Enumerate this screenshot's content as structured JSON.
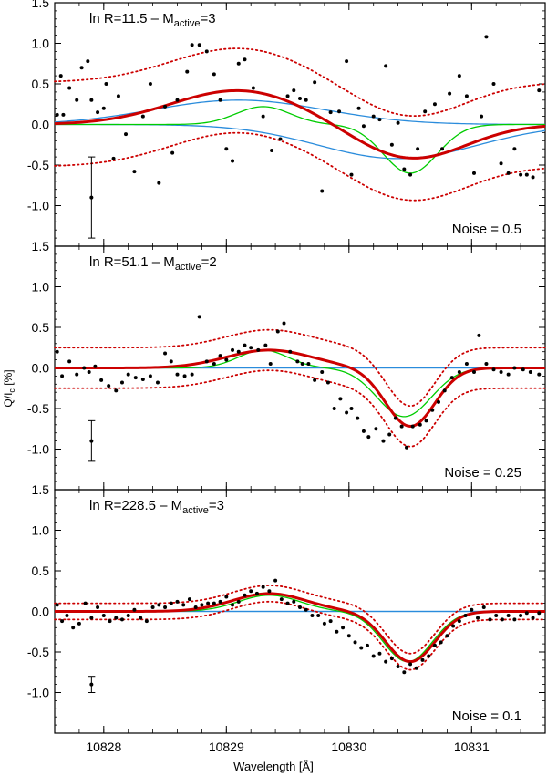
{
  "chart_data": {
    "type": "scatter",
    "xlabel": "Wavelength [Å]",
    "ylabel_main": "Q/I",
    "ylabel_sub": "c",
    "ylabel_unit": " [%]",
    "xlim": [
      10827.6,
      10831.6
    ],
    "xticks": [
      10828,
      10829,
      10830,
      10831
    ],
    "xtick_labels": [
      "10828",
      "10829",
      "10830",
      "10831"
    ],
    "ylim": [
      -1.5,
      1.5
    ],
    "yticks": [
      1.5,
      1.0,
      0.5,
      0.0,
      -0.5,
      -1.0
    ],
    "ytick_labels": [
      "1.5",
      "1.0",
      "0.5",
      "0.0",
      "-0.5",
      "-1.0"
    ],
    "colors": {
      "fit": "#cc0000",
      "green": "#00cc00",
      "blue": "#2a8cdc",
      "points": "#000000"
    },
    "panels": [
      {
        "label_pre": "ln R=11.5 – M",
        "label_sub": "active",
        "label_post": "=3",
        "noise_label": "Noise = 0.5",
        "error_bar": {
          "x": 10827.9,
          "y": -0.9,
          "err": 0.5
        },
        "scatter": [
          [
            10827.62,
            0.12
          ],
          [
            10827.65,
            0.6
          ],
          [
            10827.67,
            0.12
          ],
          [
            10827.72,
            0.45
          ],
          [
            10827.78,
            0.3
          ],
          [
            10827.82,
            0.7
          ],
          [
            10827.87,
            0.78
          ],
          [
            10827.9,
            0.3
          ],
          [
            10827.95,
            0.15
          ],
          [
            10828.0,
            0.2
          ],
          [
            10828.02,
            0.5
          ],
          [
            10828.08,
            -0.42
          ],
          [
            10828.12,
            0.35
          ],
          [
            10828.18,
            -0.12
          ],
          [
            10828.25,
            -0.58
          ],
          [
            10828.32,
            0.1
          ],
          [
            10828.38,
            0.5
          ],
          [
            10828.45,
            -0.72
          ],
          [
            10828.5,
            0.22
          ],
          [
            10828.56,
            -0.35
          ],
          [
            10828.6,
            0.3
          ],
          [
            10828.68,
            0.65
          ],
          [
            10828.72,
            0.98
          ],
          [
            10828.78,
            0.98
          ],
          [
            10828.84,
            0.9
          ],
          [
            10828.9,
            0.62
          ],
          [
            10828.95,
            0.3
          ],
          [
            10829.0,
            -0.3
          ],
          [
            10829.05,
            -0.45
          ],
          [
            10829.1,
            0.75
          ],
          [
            10829.15,
            0.8
          ],
          [
            10829.22,
            0.45
          ],
          [
            10829.3,
            0.1
          ],
          [
            10829.37,
            -0.32
          ],
          [
            10829.44,
            -0.18
          ],
          [
            10829.5,
            0.35
          ],
          [
            10829.55,
            0.42
          ],
          [
            10829.6,
            0.32
          ],
          [
            10829.65,
            0.3
          ],
          [
            10829.72,
            0.52
          ],
          [
            10829.78,
            -0.82
          ],
          [
            10829.85,
            0.15
          ],
          [
            10829.92,
            0.16
          ],
          [
            10829.98,
            0.78
          ],
          [
            10830.02,
            -0.62
          ],
          [
            10830.08,
            0.2
          ],
          [
            10830.12,
            -0.02
          ],
          [
            10830.2,
            0.1
          ],
          [
            10830.25,
            0.06
          ],
          [
            10830.3,
            0.72
          ],
          [
            10830.35,
            -0.25
          ],
          [
            10830.4,
            0.02
          ],
          [
            10830.45,
            -0.55
          ],
          [
            10830.5,
            -0.62
          ],
          [
            10830.56,
            -0.3
          ],
          [
            10830.62,
            0.16
          ],
          [
            10830.7,
            0.25
          ],
          [
            10830.76,
            -0.3
          ],
          [
            10830.82,
            0.38
          ],
          [
            10830.9,
            0.6
          ],
          [
            10830.96,
            0.35
          ],
          [
            10831.02,
            -0.6
          ],
          [
            10831.08,
            0.1
          ],
          [
            10831.12,
            1.08
          ],
          [
            10831.18,
            0.5
          ],
          [
            10831.24,
            -0.48
          ],
          [
            10831.3,
            -0.6
          ],
          [
            10831.35,
            -0.3
          ],
          [
            10831.4,
            -0.62
          ],
          [
            10831.45,
            -0.62
          ],
          [
            10831.5,
            -0.65
          ],
          [
            10831.55,
            0.42
          ]
        ]
      },
      {
        "label_pre": "ln R=51.1 – M",
        "label_sub": "active",
        "label_post": "=2",
        "noise_label": "Noise = 0.25",
        "error_bar": {
          "x": 10827.9,
          "y": -0.9,
          "err": 0.25
        },
        "scatter": [
          [
            10827.62,
            0.2
          ],
          [
            10827.66,
            -0.1
          ],
          [
            10827.72,
            0.08
          ],
          [
            10827.78,
            -0.08
          ],
          [
            10827.84,
            0.0
          ],
          [
            10827.88,
            -0.05
          ],
          [
            10827.93,
            0.02
          ],
          [
            10827.98,
            -0.15
          ],
          [
            10828.04,
            -0.22
          ],
          [
            10828.1,
            -0.28
          ],
          [
            10828.15,
            -0.18
          ],
          [
            10828.2,
            -0.08
          ],
          [
            10828.26,
            -0.12
          ],
          [
            10828.32,
            -0.14
          ],
          [
            10828.38,
            -0.1
          ],
          [
            10828.44,
            -0.18
          ],
          [
            10828.5,
            0.18
          ],
          [
            10828.55,
            0.08
          ],
          [
            10828.6,
            -0.08
          ],
          [
            10828.66,
            -0.1
          ],
          [
            10828.72,
            -0.08
          ],
          [
            10828.78,
            0.63
          ],
          [
            10828.84,
            0.08
          ],
          [
            10828.9,
            0.05
          ],
          [
            10828.95,
            0.15
          ],
          [
            10829.0,
            0.1
          ],
          [
            10829.05,
            0.22
          ],
          [
            10829.1,
            0.2
          ],
          [
            10829.15,
            0.28
          ],
          [
            10829.2,
            0.25
          ],
          [
            10829.26,
            0.22
          ],
          [
            10829.32,
            0.28
          ],
          [
            10829.36,
            0.05
          ],
          [
            10829.42,
            0.45
          ],
          [
            10829.47,
            0.55
          ],
          [
            10829.52,
            0.2
          ],
          [
            10829.58,
            0.08
          ],
          [
            10829.62,
            0.05
          ],
          [
            10829.67,
            0.05
          ],
          [
            10829.72,
            -0.15
          ],
          [
            10829.78,
            -0.05
          ],
          [
            10829.83,
            -0.18
          ],
          [
            10829.88,
            -0.5
          ],
          [
            10829.93,
            -0.38
          ],
          [
            10829.98,
            -0.55
          ],
          [
            10830.02,
            -0.5
          ],
          [
            10830.07,
            -0.62
          ],
          [
            10830.12,
            -0.78
          ],
          [
            10830.16,
            -0.85
          ],
          [
            10830.22,
            -0.75
          ],
          [
            10830.28,
            -0.9
          ],
          [
            10830.33,
            -0.82
          ],
          [
            10830.38,
            -0.62
          ],
          [
            10830.43,
            -0.72
          ],
          [
            10830.47,
            -0.98
          ],
          [
            10830.52,
            -0.72
          ],
          [
            10830.58,
            -0.7
          ],
          [
            10830.63,
            -0.65
          ],
          [
            10830.68,
            -0.52
          ],
          [
            10830.73,
            -0.42
          ],
          [
            10830.78,
            -0.28
          ],
          [
            10830.84,
            -0.12
          ],
          [
            10830.9,
            -0.05
          ],
          [
            10830.96,
            0.05
          ],
          [
            10831.02,
            -0.05
          ],
          [
            10831.06,
            0.4
          ],
          [
            10831.12,
            0.05
          ],
          [
            10831.18,
            -0.02
          ],
          [
            10831.24,
            -0.05
          ],
          [
            10831.3,
            -0.08
          ],
          [
            10831.35,
            0.0
          ],
          [
            10831.42,
            -0.02
          ],
          [
            10831.48,
            -0.05
          ],
          [
            10831.55,
            -0.08
          ]
        ]
      },
      {
        "label_pre": "ln R=228.5 – M",
        "label_sub": "active",
        "label_post": "=3",
        "noise_label": "Noise = 0.1",
        "error_bar": {
          "x": 10827.9,
          "y": -0.9,
          "err": 0.1
        },
        "scatter": [
          [
            10827.62,
            0.08
          ],
          [
            10827.66,
            -0.12
          ],
          [
            10827.7,
            -0.05
          ],
          [
            10827.75,
            -0.2
          ],
          [
            10827.8,
            -0.15
          ],
          [
            10827.85,
            0.1
          ],
          [
            10827.9,
            -0.08
          ],
          [
            10827.95,
            0.05
          ],
          [
            10828.0,
            -0.05
          ],
          [
            10828.05,
            -0.12
          ],
          [
            10828.1,
            -0.08
          ],
          [
            10828.15,
            -0.1
          ],
          [
            10828.2,
            -0.05
          ],
          [
            10828.25,
            0.02
          ],
          [
            10828.3,
            -0.08
          ],
          [
            10828.35,
            -0.12
          ],
          [
            10828.4,
            0.05
          ],
          [
            10828.45,
            0.08
          ],
          [
            10828.5,
            0.05
          ],
          [
            10828.55,
            0.1
          ],
          [
            10828.6,
            0.12
          ],
          [
            10828.65,
            0.08
          ],
          [
            10828.7,
            0.15
          ],
          [
            10828.75,
            0.05
          ],
          [
            10828.8,
            0.08
          ],
          [
            10828.85,
            0.1
          ],
          [
            10828.9,
            0.1
          ],
          [
            10828.95,
            0.12
          ],
          [
            10829.0,
            0.18
          ],
          [
            10829.05,
            0.08
          ],
          [
            10829.1,
            0.12
          ],
          [
            10829.15,
            0.2
          ],
          [
            10829.2,
            0.25
          ],
          [
            10829.25,
            0.22
          ],
          [
            10829.3,
            0.3
          ],
          [
            10829.35,
            0.25
          ],
          [
            10829.4,
            0.38
          ],
          [
            10829.45,
            0.15
          ],
          [
            10829.5,
            0.1
          ],
          [
            10829.55,
            0.12
          ],
          [
            10829.6,
            0.05
          ],
          [
            10829.65,
            0.02
          ],
          [
            10829.7,
            -0.05
          ],
          [
            10829.75,
            -0.05
          ],
          [
            10829.8,
            -0.15
          ],
          [
            10829.85,
            -0.12
          ],
          [
            10829.9,
            -0.25
          ],
          [
            10829.95,
            -0.2
          ],
          [
            10830.0,
            -0.3
          ],
          [
            10830.05,
            -0.38
          ],
          [
            10830.1,
            -0.45
          ],
          [
            10830.15,
            -0.42
          ],
          [
            10830.2,
            -0.55
          ],
          [
            10830.25,
            -0.52
          ],
          [
            10830.3,
            -0.62
          ],
          [
            10830.35,
            -0.58
          ],
          [
            10830.4,
            -0.68
          ],
          [
            10830.45,
            -0.75
          ],
          [
            10830.5,
            -0.65
          ],
          [
            10830.55,
            -0.7
          ],
          [
            10830.6,
            -0.6
          ],
          [
            10830.65,
            -0.55
          ],
          [
            10830.7,
            -0.42
          ],
          [
            10830.75,
            -0.38
          ],
          [
            10830.8,
            -0.3
          ],
          [
            10830.85,
            -0.18
          ],
          [
            10830.9,
            -0.12
          ],
          [
            10830.95,
            -0.05
          ],
          [
            10831.0,
            0.02
          ],
          [
            10831.05,
            -0.08
          ],
          [
            10831.1,
            0.05
          ],
          [
            10831.15,
            -0.1
          ],
          [
            10831.2,
            -0.05
          ],
          [
            10831.25,
            -0.1
          ],
          [
            10831.3,
            -0.05
          ],
          [
            10831.35,
            -0.1
          ],
          [
            10831.4,
            -0.05
          ],
          [
            10831.45,
            -0.02
          ],
          [
            10831.5,
            -0.08
          ],
          [
            10831.55,
            -0.02
          ]
        ]
      }
    ]
  }
}
